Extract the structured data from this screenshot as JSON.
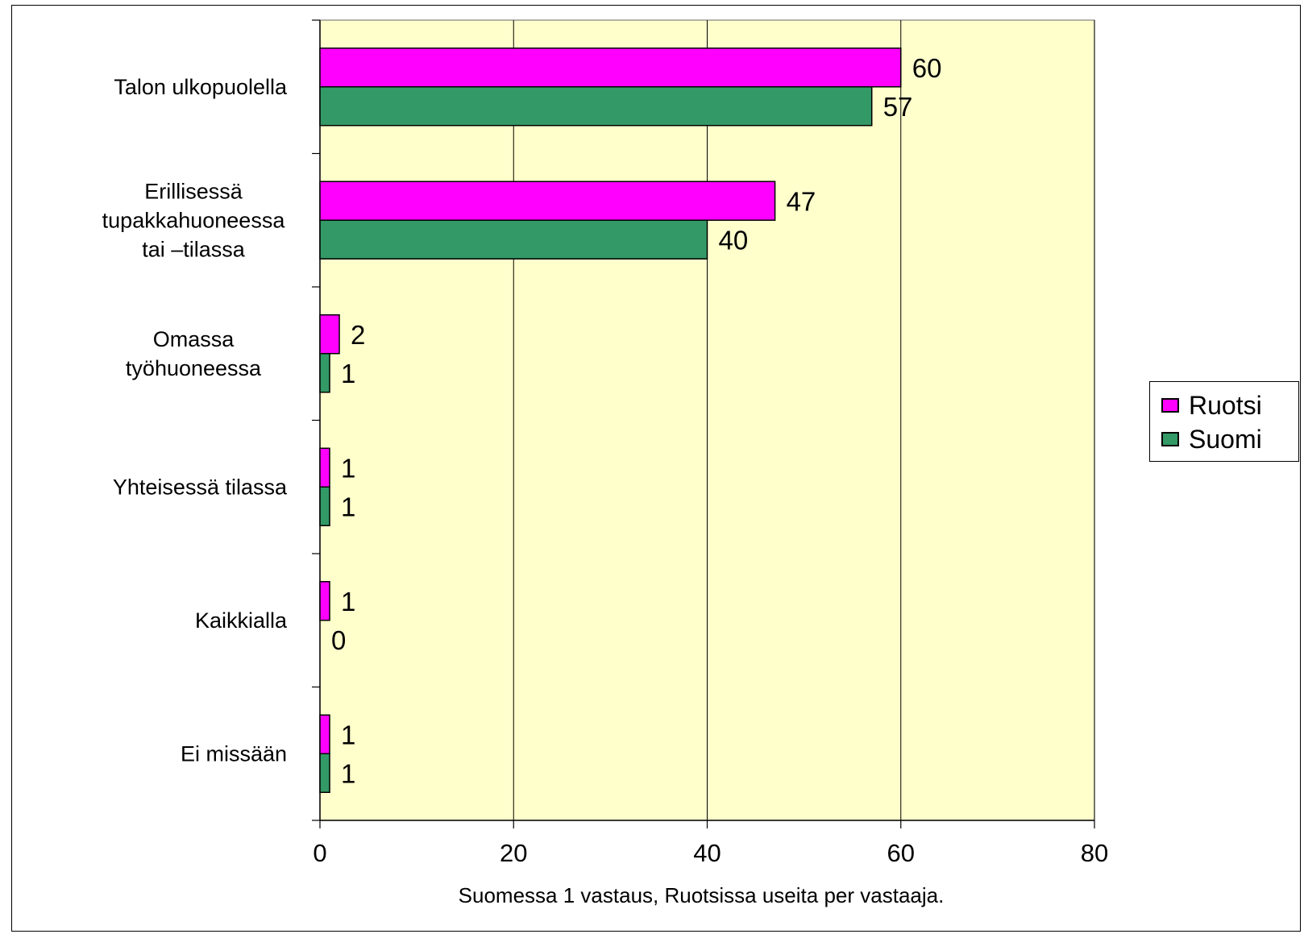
{
  "chart_data": {
    "type": "bar",
    "orientation": "horizontal",
    "categories": [
      "Talon ulkopuolella",
      "Erillisessä tupakkahuoneessa tai –tilassa",
      "Omassa työhuoneessa",
      "Yhteisessä tilassa",
      "Kaikkialla",
      "Ei missään"
    ],
    "category_lines": [
      [
        "Talon ulkopuolella"
      ],
      [
        "Erillisessä",
        "tupakkahuoneessa",
        "tai –tilassa"
      ],
      [
        "Omassa",
        "työhuoneessa"
      ],
      [
        "Yhteisessä tilassa"
      ],
      [
        "Kaikkialla"
      ],
      [
        "Ei missään"
      ]
    ],
    "series": [
      {
        "name": "Ruotsi",
        "color": "#FF00FF",
        "values": [
          60,
          47,
          2,
          1,
          1,
          1
        ]
      },
      {
        "name": "Suomi",
        "color": "#339966",
        "values": [
          57,
          40,
          1,
          1,
          0,
          1
        ]
      }
    ],
    "xlabel": "Suomessa 1 vastaus, Ruotsissa useita per vastaaja.",
    "ylabel": "",
    "xlim": [
      0,
      80
    ],
    "xticks": [
      0,
      20,
      40,
      60,
      80
    ],
    "grid": true,
    "plot_background": "#FFFFCC",
    "legend_position": "right"
  }
}
